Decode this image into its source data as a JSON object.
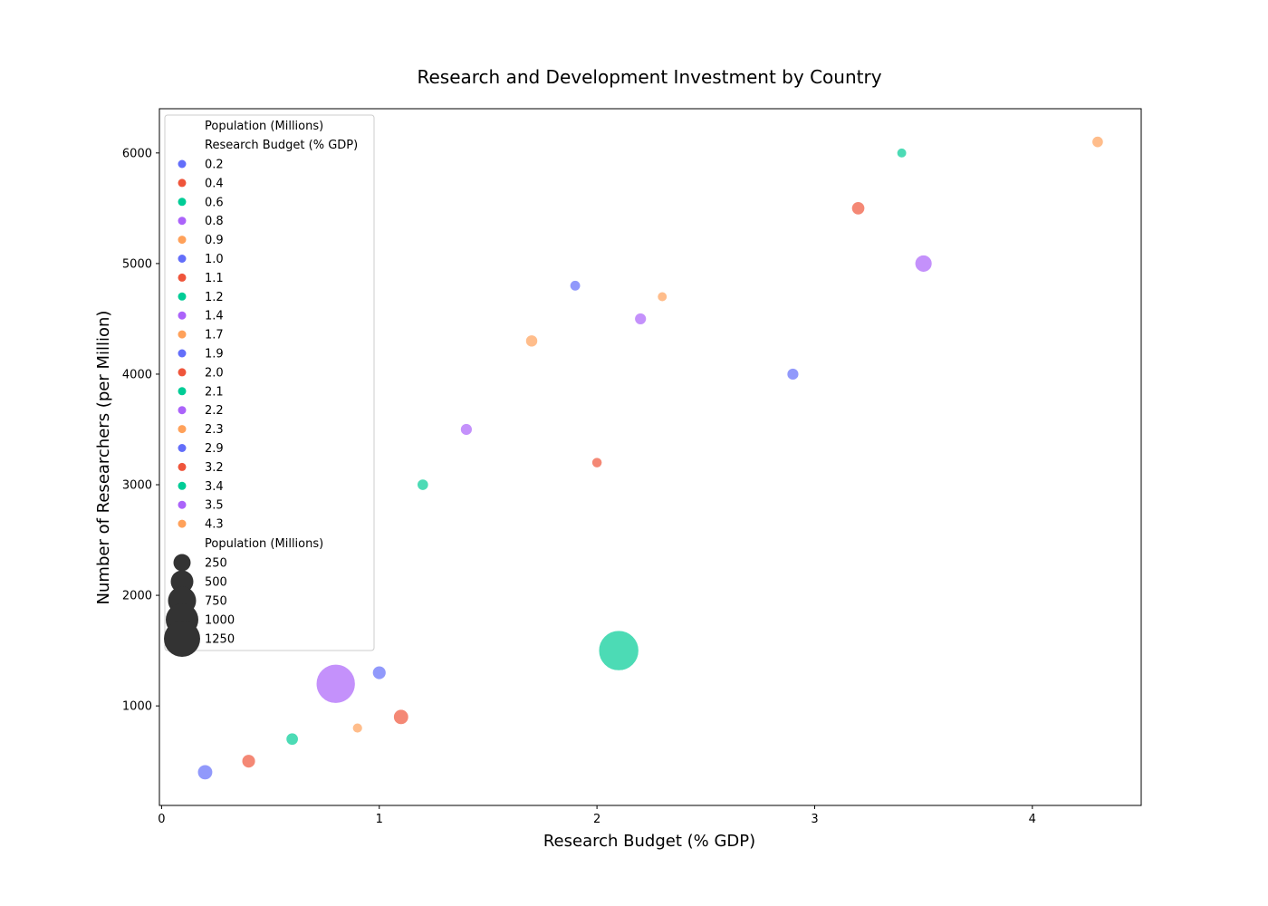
{
  "chart_data": {
    "type": "scatter",
    "title": "Research and Development Investment by Country",
    "xlabel": "Research Budget (% GDP)",
    "ylabel": "Number of Researchers (per Million)",
    "xlim": [
      -0.01,
      4.5
    ],
    "ylim": [
      100,
      6400
    ],
    "x_ticks": [
      0,
      1,
      2,
      3,
      4
    ],
    "y_ticks": [
      1000,
      2000,
      3000,
      4000,
      5000,
      6000
    ],
    "grid": false,
    "palette": [
      "#636efa",
      "#ef553b",
      "#00cc96",
      "#ab63fa",
      "#ffa15a"
    ],
    "marker_alpha": 0.7,
    "points": [
      {
        "x": 0.2,
        "y": 400,
        "population": 150
      },
      {
        "x": 0.4,
        "y": 500,
        "population": 110
      },
      {
        "x": 0.6,
        "y": 700,
        "population": 80
      },
      {
        "x": 0.8,
        "y": 1200,
        "population": 1330
      },
      {
        "x": 0.9,
        "y": 800,
        "population": 35
      },
      {
        "x": 1.0,
        "y": 1300,
        "population": 110
      },
      {
        "x": 1.1,
        "y": 900,
        "population": 150
      },
      {
        "x": 1.2,
        "y": 3000,
        "population": 60
      },
      {
        "x": 1.4,
        "y": 3500,
        "population": 70
      },
      {
        "x": 1.7,
        "y": 4300,
        "population": 75
      },
      {
        "x": 1.9,
        "y": 4800,
        "population": 45
      },
      {
        "x": 2.0,
        "y": 3200,
        "population": 40
      },
      {
        "x": 2.1,
        "y": 1500,
        "population": 1400
      },
      {
        "x": 2.2,
        "y": 4500,
        "population": 70
      },
      {
        "x": 2.3,
        "y": 4700,
        "population": 30
      },
      {
        "x": 2.9,
        "y": 4000,
        "population": 70
      },
      {
        "x": 3.2,
        "y": 5500,
        "population": 100
      },
      {
        "x": 3.4,
        "y": 6000,
        "population": 30
      },
      {
        "x": 3.5,
        "y": 5000,
        "population": 210
      },
      {
        "x": 4.3,
        "y": 6100,
        "population": 60
      }
    ],
    "legend": {
      "placement": "upper-left",
      "header": "Population (Millions)",
      "hue_title": "Research Budget (% GDP)",
      "hue_items": [
        "0.2",
        "0.4",
        "0.6",
        "0.8",
        "0.9",
        "1.0",
        "1.1",
        "1.2",
        "1.4",
        "1.7",
        "1.9",
        "2.0",
        "2.1",
        "2.2",
        "2.3",
        "2.9",
        "3.2",
        "3.4",
        "3.5",
        "4.3"
      ],
      "size_title": "Population (Millions)",
      "size_items": [
        {
          "label": "250",
          "value": 250
        },
        {
          "label": "500",
          "value": 500
        },
        {
          "label": "750",
          "value": 750
        },
        {
          "label": "1000",
          "value": 1000
        },
        {
          "label": "1250",
          "value": 1250
        }
      ],
      "size_marker_color": "#333333"
    }
  }
}
